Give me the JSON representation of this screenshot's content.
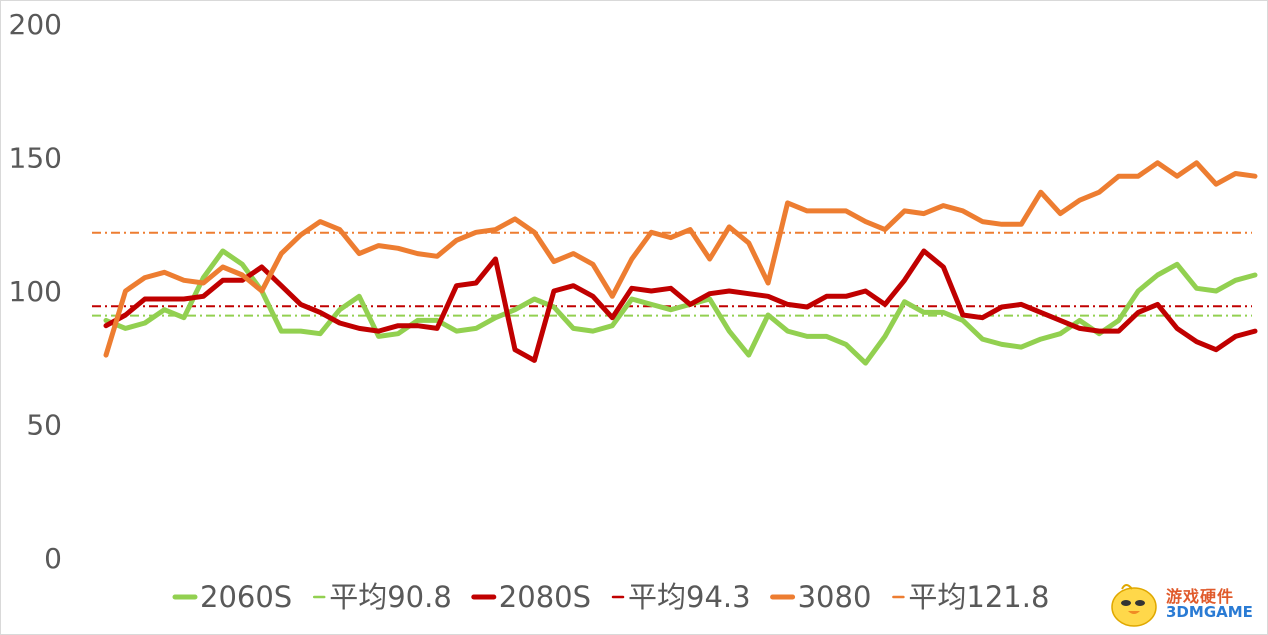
{
  "chart_data": {
    "type": "line",
    "title": "",
    "xlabel": "",
    "ylabel": "",
    "ylim": [
      0,
      200
    ],
    "yticks": [
      0,
      50,
      100,
      150,
      200
    ],
    "grid": false,
    "legend_position": "bottom",
    "series": [
      {
        "name": "2060S",
        "color": "#92d050",
        "style": "solid",
        "values": [
          89,
          86,
          88,
          93,
          90,
          105,
          115,
          110,
          100,
          85,
          85,
          84,
          93,
          98,
          83,
          84,
          89,
          89,
          85,
          86,
          90,
          93,
          97,
          94,
          86,
          85,
          87,
          97,
          95,
          93,
          95,
          97,
          85,
          76,
          91,
          85,
          83,
          83,
          80,
          73,
          83,
          96,
          92,
          92,
          89,
          82,
          80,
          79,
          82,
          84,
          89,
          84,
          89,
          100,
          106,
          110,
          101,
          100,
          104,
          106
        ]
      },
      {
        "name": "平均90.8",
        "color": "#92d050",
        "style": "dash-dot",
        "constant": 90.8
      },
      {
        "name": "2080S",
        "color": "#c00000",
        "style": "solid",
        "values": [
          87,
          91,
          97,
          97,
          97,
          98,
          104,
          104,
          109,
          102,
          95,
          92,
          88,
          86,
          85,
          87,
          87,
          86,
          102,
          103,
          112,
          78,
          74,
          100,
          102,
          98,
          90,
          101,
          100,
          101,
          95,
          99,
          100,
          99,
          98,
          95,
          94,
          98,
          98,
          100,
          95,
          104,
          115,
          109,
          91,
          90,
          94,
          95,
          92,
          89,
          86,
          85,
          85,
          92,
          95,
          86,
          81,
          78,
          83,
          85
        ]
      },
      {
        "name": "平均94.3",
        "color": "#c00000",
        "style": "dash-dot",
        "constant": 94.3
      },
      {
        "name": "3080",
        "color": "#ed7d31",
        "style": "solid",
        "values": [
          76,
          100,
          105,
          107,
          104,
          103,
          109,
          106,
          100,
          114,
          121,
          126,
          123,
          114,
          117,
          116,
          114,
          113,
          119,
          122,
          123,
          127,
          122,
          111,
          114,
          110,
          98,
          112,
          122,
          120,
          123,
          112,
          124,
          118,
          103,
          133,
          130,
          130,
          130,
          126,
          123,
          130,
          129,
          132,
          130,
          126,
          125,
          125,
          137,
          129,
          134,
          137,
          143,
          143,
          148,
          143,
          148,
          140,
          144,
          143
        ]
      },
      {
        "name": "平均121.8",
        "color": "#ed7d31",
        "style": "dash-dot",
        "constant": 121.8
      }
    ]
  },
  "watermark": {
    "line1": "游戏硬件",
    "line2": "3DMGAME"
  }
}
